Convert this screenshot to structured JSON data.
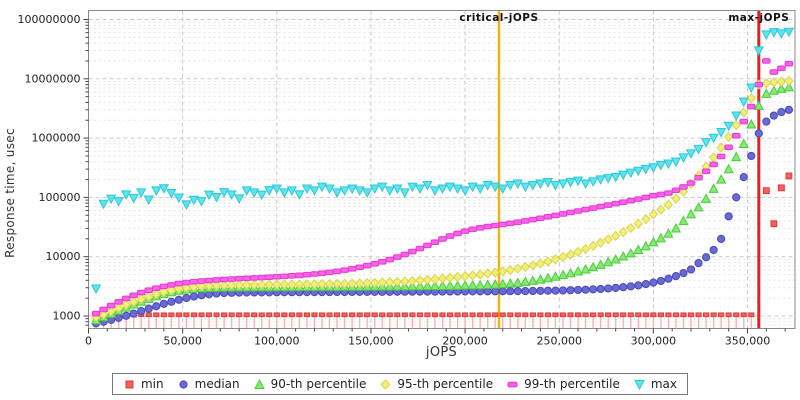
{
  "figure": {
    "background": "#ffffff",
    "plot_border_color": "#888888",
    "grid_major_color": "#c9c9c9",
    "grid_minor_color": "#e3e3e3",
    "tick_color": "#444444",
    "tick_label_color": "#222222"
  },
  "chart_data": {
    "type": "scatter",
    "title": "",
    "xlabel": "jOPS",
    "ylabel": "Response time, usec",
    "x_axis": {
      "min": 0,
      "max": 375500,
      "major_tick_step": 50000,
      "minor_tick_step": 10000,
      "ticks": [
        0,
        50000,
        100000,
        150000,
        200000,
        250000,
        300000,
        350000
      ],
      "tick_labels": [
        "0",
        "50,000",
        "100,000",
        "150,000",
        "200,000",
        "250,000",
        "300,000",
        "350,000"
      ],
      "grid": "major-dashed"
    },
    "y_axis": {
      "scale": "log",
      "min": 600,
      "max": 140000000,
      "ticks": [
        1000,
        10000,
        100000,
        1000000,
        10000000,
        100000000
      ],
      "tick_labels": [
        "1000",
        "10000",
        "100000",
        "1000000",
        "10000000",
        "100000000"
      ],
      "grid": "major-and-minor-dashed"
    },
    "ref_lines": [
      {
        "label": "critical-jOPS",
        "x": 218000,
        "color": "#eeb411",
        "width": 2.5
      },
      {
        "label": "max-jOPS",
        "x": 356000,
        "color": "#f31b1b",
        "width": 3
      }
    ],
    "legend_position": "bottom-center",
    "x": [
      4000,
      8000,
      12000,
      16000,
      20000,
      24000,
      28000,
      32000,
      36000,
      40000,
      44000,
      48000,
      52000,
      56000,
      60000,
      64000,
      68000,
      72000,
      76000,
      80000,
      84000,
      88000,
      92000,
      96000,
      100000,
      104000,
      108000,
      112000,
      116000,
      120000,
      124000,
      128000,
      132000,
      136000,
      140000,
      144000,
      148000,
      152000,
      156000,
      160000,
      164000,
      168000,
      172000,
      176000,
      180000,
      184000,
      188000,
      192000,
      196000,
      200000,
      204000,
      208000,
      212000,
      216000,
      220000,
      224000,
      228000,
      232000,
      236000,
      240000,
      244000,
      248000,
      252000,
      256000,
      260000,
      264000,
      268000,
      272000,
      276000,
      280000,
      284000,
      288000,
      292000,
      296000,
      300000,
      304000,
      308000,
      312000,
      316000,
      320000,
      324000,
      328000,
      332000,
      336000,
      340000,
      344000,
      348000,
      352000,
      356000,
      360000,
      364000,
      368000,
      372000
    ],
    "series": [
      {
        "name": "min",
        "label": "min",
        "marker": "tee",
        "fill": "#f95f5f",
        "stroke": "#d83b3b",
        "stem_color": "#ffb3b3",
        "values": [
          850,
          900,
          950,
          1000,
          1020,
          1040,
          1050,
          1050,
          1050,
          1050,
          1050,
          1050,
          1050,
          1050,
          1050,
          1050,
          1050,
          1050,
          1050,
          1050,
          1050,
          1050,
          1050,
          1050,
          1050,
          1050,
          1050,
          1050,
          1050,
          1050,
          1050,
          1050,
          1050,
          1050,
          1050,
          1050,
          1050,
          1050,
          1050,
          1050,
          1050,
          1050,
          1050,
          1050,
          1050,
          1050,
          1050,
          1050,
          1050,
          1050,
          1050,
          1050,
          1050,
          1050,
          1050,
          1050,
          1050,
          1050,
          1050,
          1050,
          1050,
          1050,
          1050,
          1050,
          1050,
          1050,
          1050,
          1050,
          1050,
          1050,
          1050,
          1050,
          1050,
          1050,
          1050,
          1050,
          1050,
          1050,
          1050,
          1050,
          1050,
          1050,
          1050,
          1050,
          1050,
          1050,
          1050,
          1050,
          null,
          130000,
          36000,
          145000,
          230000
        ]
      },
      {
        "name": "median",
        "label": "median",
        "marker": "circle",
        "fill": "#6a6ad4",
        "stroke": "#4848b8",
        "values": [
          750,
          800,
          860,
          930,
          1010,
          1100,
          1210,
          1330,
          1460,
          1600,
          1740,
          1880,
          2010,
          2130,
          2240,
          2330,
          2400,
          2440,
          2460,
          2480,
          2490,
          2495,
          2500,
          2505,
          2510,
          2515,
          2520,
          2520,
          2525,
          2530,
          2530,
          2535,
          2540,
          2540,
          2545,
          2550,
          2550,
          2555,
          2560,
          2560,
          2565,
          2570,
          2570,
          2575,
          2580,
          2580,
          2585,
          2590,
          2590,
          2595,
          2600,
          2600,
          2605,
          2610,
          2615,
          2620,
          2625,
          2630,
          2640,
          2650,
          2665,
          2680,
          2700,
          2725,
          2750,
          2780,
          2815,
          2860,
          2915,
          2980,
          3060,
          3160,
          3290,
          3450,
          3650,
          3900,
          4250,
          4700,
          5300,
          6100,
          7800,
          9800,
          13000,
          20000,
          48000,
          100000,
          220000,
          500000,
          1200000,
          1900000,
          2400000,
          2750000,
          3000000
        ]
      },
      {
        "name": "p90",
        "label": "90-th percentile",
        "marker": "triangle-up",
        "fill": "#84ea70",
        "stroke": "#4ecb3e",
        "values": [
          850,
          960,
          1090,
          1230,
          1390,
          1560,
          1750,
          1950,
          2150,
          2350,
          2530,
          2680,
          2800,
          2890,
          2950,
          2990,
          3010,
          3030,
          3040,
          3050,
          3055,
          3060,
          3065,
          3070,
          3075,
          3080,
          3085,
          3090,
          3095,
          3100,
          3105,
          3110,
          3115,
          3120,
          3125,
          3130,
          3135,
          3140,
          3150,
          3155,
          3160,
          3170,
          3180,
          3190,
          3200,
          3210,
          3225,
          3240,
          3255,
          3275,
          3295,
          3320,
          3355,
          3400,
          3460,
          3540,
          3640,
          3770,
          3930,
          4120,
          4350,
          4600,
          4900,
          5250,
          5650,
          6100,
          6650,
          7300,
          8100,
          9000,
          10100,
          11400,
          13000,
          15000,
          17500,
          20500,
          24500,
          30000,
          40000,
          52000,
          68000,
          95000,
          140000,
          200000,
          300000,
          480000,
          800000,
          1700000,
          3500000,
          5600000,
          6300000,
          6800000,
          7200000
        ]
      },
      {
        "name": "p95",
        "label": "95-th percentile",
        "marker": "diamond",
        "fill": "#f1ef76",
        "stroke": "#d8d44e",
        "values": [
          950,
          1060,
          1200,
          1360,
          1540,
          1730,
          1930,
          2130,
          2330,
          2530,
          2710,
          2860,
          2980,
          3080,
          3160,
          3220,
          3260,
          3290,
          3310,
          3330,
          3345,
          3360,
          3370,
          3380,
          3390,
          3400,
          3410,
          3420,
          3430,
          3445,
          3460,
          3475,
          3490,
          3510,
          3530,
          3560,
          3590,
          3630,
          3670,
          3720,
          3780,
          3840,
          3910,
          3990,
          4080,
          4180,
          4290,
          4410,
          4540,
          4680,
          4840,
          5010,
          5200,
          5400,
          5650,
          5950,
          6300,
          6700,
          7150,
          7700,
          8300,
          9000,
          9900,
          10900,
          12100,
          13500,
          15200,
          17200,
          19600,
          22500,
          26000,
          30500,
          36000,
          43000,
          52000,
          62000,
          75000,
          95000,
          125000,
          170000,
          235000,
          330000,
          470000,
          690000,
          1050000,
          1650000,
          2700000,
          4700000,
          8000000,
          8400000,
          8700000,
          9000000,
          9200000
        ]
      },
      {
        "name": "p99",
        "label": "99-th percentile",
        "marker": "hbar",
        "fill": "#f861e8",
        "stroke": "#e23ccd",
        "values": [
          1100,
          1290,
          1500,
          1730,
          1980,
          2230,
          2480,
          2720,
          2950,
          3160,
          3350,
          3520,
          3660,
          3780,
          3880,
          3970,
          4050,
          4130,
          4200,
          4270,
          4330,
          4390,
          4450,
          4520,
          4590,
          4670,
          4760,
          4860,
          4980,
          5110,
          5270,
          5460,
          5680,
          5940,
          6250,
          6620,
          7060,
          7580,
          8200,
          8950,
          9850,
          10900,
          12200,
          13700,
          15500,
          17600,
          19900,
          22300,
          24700,
          27000,
          29000,
          30700,
          32200,
          33600,
          35000,
          36500,
          38200,
          40100,
          42200,
          44500,
          47000,
          49700,
          52600,
          55700,
          59000,
          62500,
          66200,
          70100,
          74200,
          78500,
          83000,
          88000,
          93500,
          100000,
          107000,
          112000,
          118000,
          132000,
          150000,
          175000,
          215000,
          275000,
          360000,
          490000,
          700000,
          1100000,
          1900000,
          3400000,
          8000000,
          20000000,
          13000000,
          15000000,
          18000000
        ]
      },
      {
        "name": "max",
        "label": "max",
        "marker": "triangle-down",
        "fill": "#5fe3ec",
        "stroke": "#2cc8d6",
        "values": [
          2900,
          78000,
          95000,
          86000,
          112000,
          98000,
          121000,
          92000,
          131000,
          142000,
          118000,
          99000,
          76000,
          91000,
          86000,
          111000,
          101000,
          122000,
          112000,
          96000,
          131000,
          121000,
          111000,
          132000,
          141000,
          121000,
          131000,
          112000,
          141000,
          131000,
          151000,
          141000,
          121000,
          131000,
          141000,
          131000,
          121000,
          141000,
          151000,
          131000,
          141000,
          121000,
          151000,
          141000,
          161000,
          131000,
          141000,
          151000,
          141000,
          131000,
          151000,
          141000,
          161000,
          151000,
          141000,
          161000,
          171000,
          151000,
          161000,
          171000,
          181000,
          161000,
          171000,
          181000,
          191000,
          171000,
          186000,
          201000,
          211000,
          221000,
          241000,
          261000,
          281000,
          301000,
          321000,
          351000,
          371000,
          401000,
          471000,
          551000,
          651000,
          851000,
          1010000,
          1260000,
          1610000,
          2400000,
          4100000,
          7100000,
          30000000,
          56000000,
          61000000,
          58000000,
          62000000
        ]
      }
    ]
  }
}
